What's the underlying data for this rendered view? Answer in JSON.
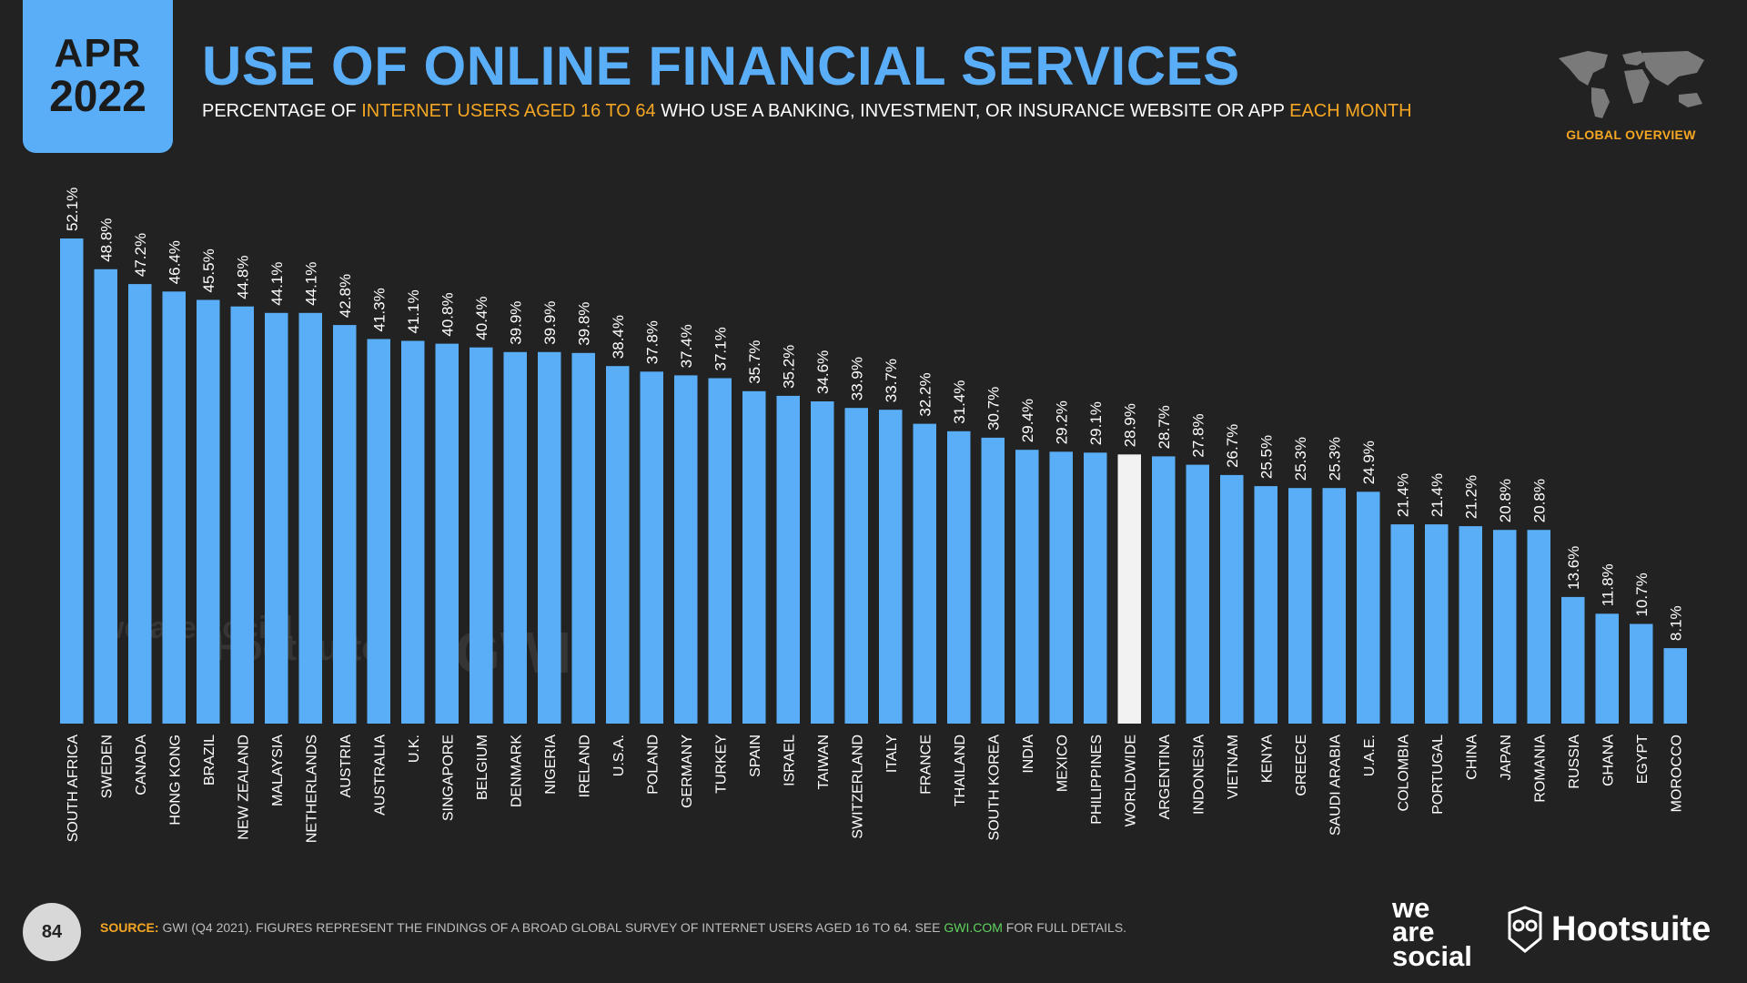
{
  "header": {
    "month": "APR",
    "year": "2022",
    "title": "USE OF ONLINE FINANCIAL SERVICES",
    "subtitle_parts": [
      {
        "text": "PERCENTAGE OF ",
        "highlight": false
      },
      {
        "text": "INTERNET USERS AGED 16 TO 64",
        "highlight": true
      },
      {
        "text": " WHO USE A BANKING, INVESTMENT, OR INSURANCE WEBSITE OR APP ",
        "highlight": false
      },
      {
        "text": "EACH MONTH",
        "highlight": true
      }
    ],
    "global_label": "GLOBAL OVERVIEW",
    "map_icon": "world-map-icon"
  },
  "colors": {
    "background": "#222222",
    "bar": "#5aaef7",
    "highlight_bar": "#f2f2f2",
    "accent": "#f5a623",
    "link": "#5fd35f"
  },
  "chart_data": {
    "type": "bar",
    "title": "",
    "xlabel": "",
    "ylabel": "",
    "ylim": [
      0,
      55
    ],
    "value_suffix": "%",
    "highlight_category": "WORLDWIDE",
    "categories": [
      "SOUTH AFRICA",
      "SWEDEN",
      "CANADA",
      "HONG KONG",
      "BRAZIL",
      "NEW ZEALAND",
      "MALAYSIA",
      "NETHERLANDS",
      "AUSTRIA",
      "AUSTRALIA",
      "U.K.",
      "SINGAPORE",
      "BELGIUM",
      "DENMARK",
      "NIGERIA",
      "IRELAND",
      "U.S.A.",
      "POLAND",
      "GERMANY",
      "TURKEY",
      "SPAIN",
      "ISRAEL",
      "TAIWAN",
      "SWITZERLAND",
      "ITALY",
      "FRANCE",
      "THAILAND",
      "SOUTH KOREA",
      "INDIA",
      "MEXICO",
      "PHILIPPINES",
      "WORLDWIDE",
      "ARGENTINA",
      "INDONESIA",
      "VIETNAM",
      "KENYA",
      "GREECE",
      "SAUDI ARABIA",
      "U.A.E.",
      "COLOMBIA",
      "PORTUGAL",
      "CHINA",
      "JAPAN",
      "ROMANIA",
      "RUSSIA",
      "GHANA",
      "EGYPT",
      "MOROCCO"
    ],
    "values": [
      52.1,
      48.8,
      47.2,
      46.4,
      45.5,
      44.8,
      44.1,
      44.1,
      42.8,
      41.3,
      41.1,
      40.8,
      40.4,
      39.9,
      39.9,
      39.8,
      38.4,
      37.8,
      37.4,
      37.1,
      35.7,
      35.2,
      34.6,
      33.9,
      33.7,
      32.2,
      31.4,
      30.7,
      29.4,
      29.2,
      29.1,
      28.9,
      28.7,
      27.8,
      26.7,
      25.5,
      25.3,
      25.3,
      24.9,
      21.4,
      21.4,
      21.2,
      20.8,
      20.8,
      13.6,
      11.8,
      10.7,
      8.1
    ]
  },
  "watermarks": {
    "social": "we are social",
    "hootsuite": "Hootsuite",
    "gwi": "GWI."
  },
  "footer": {
    "page_number": "84",
    "source_label": "SOURCE:",
    "source_text": " GWI (Q4 2021). FIGURES REPRESENT THE FINDINGS OF A BROAD GLOBAL SURVEY OF INTERNET USERS AGED 16 TO 64. SEE ",
    "source_link": "GWI.COM",
    "source_tail": " FOR FULL DETAILS.",
    "logo_social": [
      "we",
      "are",
      "social"
    ],
    "logo_hootsuite": "Hootsuite"
  }
}
